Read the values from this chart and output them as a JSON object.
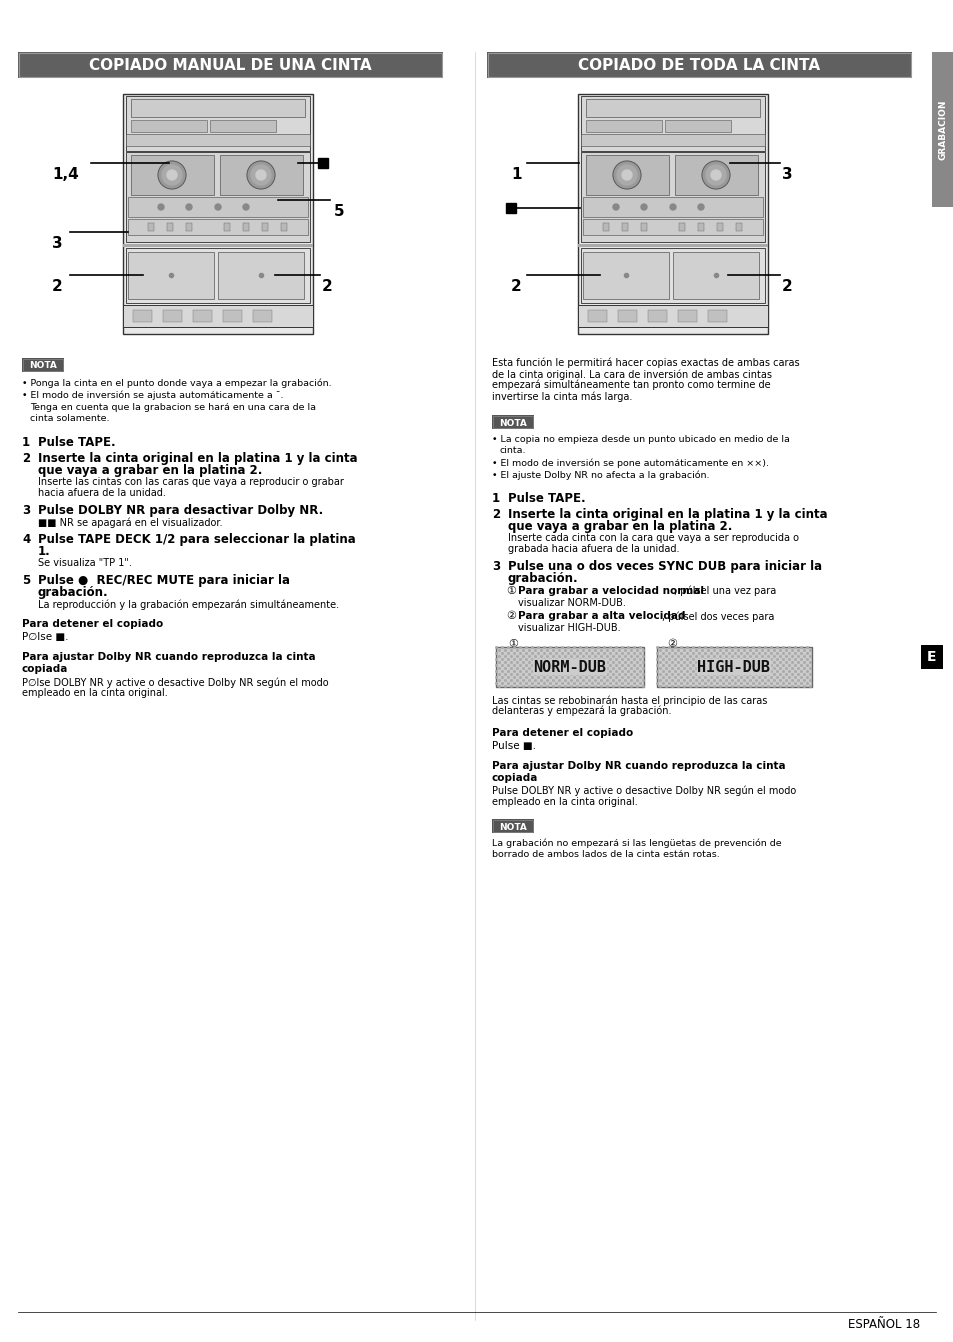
{
  "bg_color": "#ffffff",
  "page_width": 9.54,
  "page_height": 13.42,
  "left_title": "COPIADO MANUAL DE UNA CINTA",
  "right_title": "COPIADO DE TODA LA CINTA",
  "side_label": "GRABACION",
  "title_bg": "#606060",
  "title_fg": "#ffffff",
  "nota_bg": "#555555",
  "nota_fg": "#ffffff",
  "e_label_bg": "#000000",
  "e_label_fg": "#ffffff",
  "footer_text": "ESPAÑOL 18"
}
